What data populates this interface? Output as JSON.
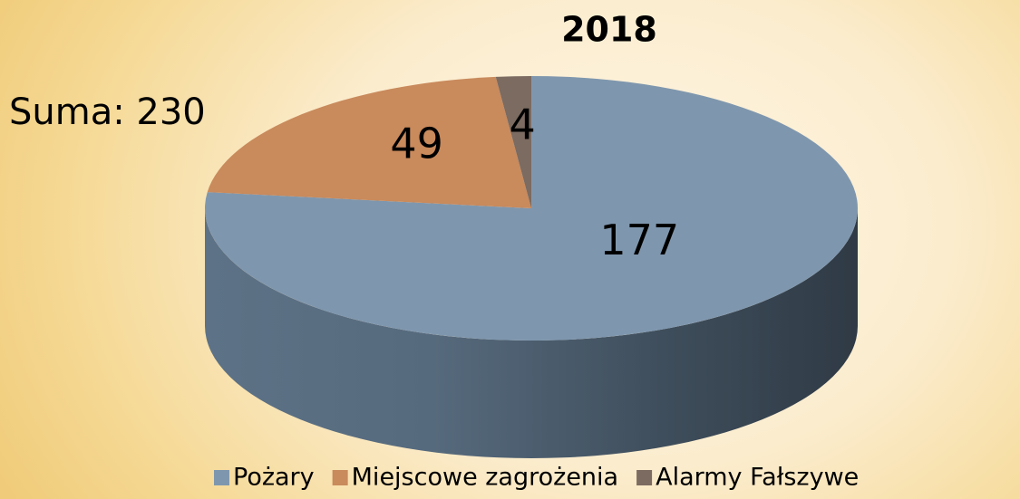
{
  "chart_data": {
    "type": "pie3d",
    "title": "2018",
    "annotation": "Suma: 230",
    "categories": [
      "Pożary",
      "Miejscowe zagrożenia",
      "Alarmy Fałszywe"
    ],
    "values": [
      177,
      49,
      4
    ],
    "colors": [
      "#7f97ae",
      "#c98a5c",
      "#7b6b61"
    ],
    "legend": "bottom"
  }
}
